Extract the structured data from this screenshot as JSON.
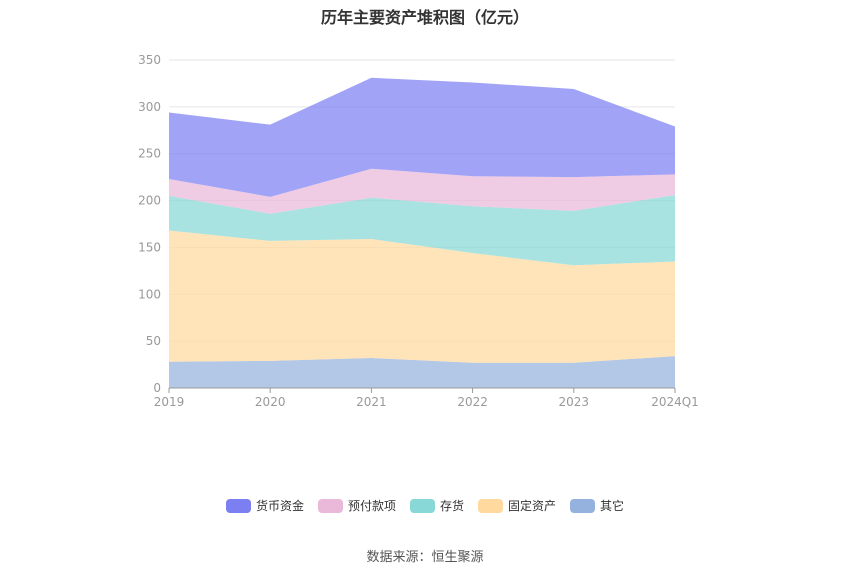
{
  "chart_data": {
    "type": "area",
    "stacked": true,
    "title": "历年主要资产堆积图（亿元）",
    "categories": [
      "2019",
      "2020",
      "2021",
      "2022",
      "2023",
      "2024Q1"
    ],
    "ylim": [
      0,
      350
    ],
    "yticks": [
      0,
      50,
      100,
      150,
      200,
      250,
      300,
      350
    ],
    "grid": true,
    "legend_position": "bottom",
    "series": [
      {
        "name": "其它",
        "color": "#95b2de",
        "values": [
          28,
          29,
          32,
          27,
          27,
          34
        ]
      },
      {
        "name": "固定资产",
        "color": "#ffd99e",
        "values": [
          140,
          128,
          127,
          117,
          104,
          101
        ]
      },
      {
        "name": "存货",
        "color": "#87d8d6",
        "values": [
          37,
          29,
          44,
          50,
          58,
          71
        ]
      },
      {
        "name": "预付款项",
        "color": "#eab9da",
        "values": [
          18,
          18,
          31,
          32,
          36,
          22
        ]
      },
      {
        "name": "货币资金",
        "color": "#7b7ff2",
        "values": [
          71,
          77,
          97,
          100,
          94,
          51
        ]
      }
    ]
  },
  "legend_order": [
    "货币资金",
    "预付款项",
    "存货",
    "固定资产",
    "其它"
  ],
  "source": "数据来源：恒生聚源"
}
